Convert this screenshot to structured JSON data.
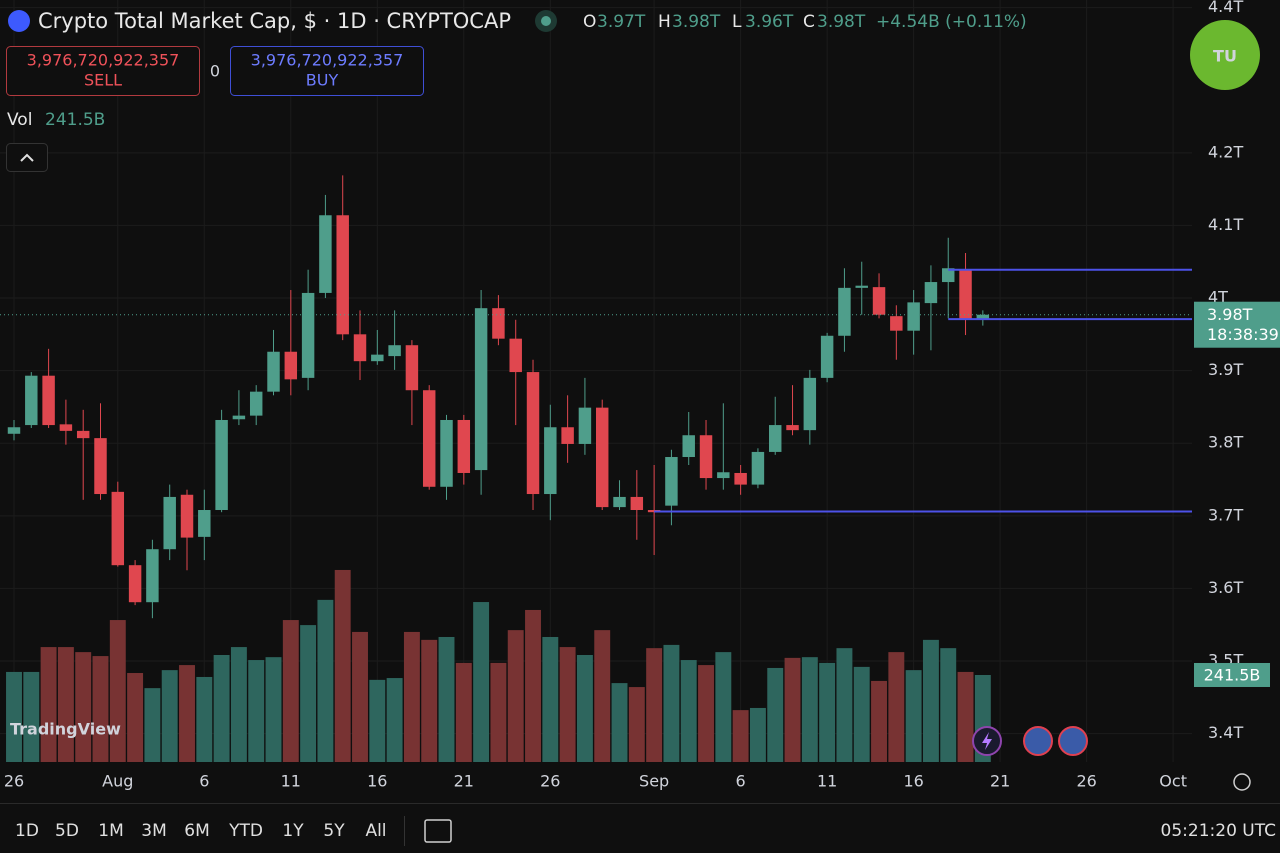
{
  "header": {
    "symbol": "Crypto Total Market Cap, $ · 1D · CRYPTOCAP",
    "ohlc": [
      {
        "key": "O",
        "value": "3.97T"
      },
      {
        "key": "H",
        "value": "3.98T"
      },
      {
        "key": "L",
        "value": "3.96T"
      },
      {
        "key": "C",
        "value": "3.98T"
      }
    ],
    "change": "+4.54B (+0.11%)"
  },
  "trade": {
    "sell_price": "3,976,720,922,357",
    "sell": "SELL",
    "spread": "0",
    "buy_price": "3,976,720,922,357",
    "buy": "BUY"
  },
  "volume_legend": {
    "label": "Vol",
    "value": "241.5B"
  },
  "brand": "TU",
  "watermark": "TradingView",
  "footer": {
    "ranges": [
      "1D",
      "5D",
      "1M",
      "3M",
      "6M",
      "YTD",
      "1Y",
      "5Y",
      "All"
    ],
    "time": "05:21:20 UTC"
  },
  "chart_data": {
    "type": "candlestick",
    "open": [
      3.813,
      3.825,
      3.893,
      3.826,
      3.817,
      3.807,
      3.733,
      3.632,
      3.581,
      3.654,
      3.729,
      3.671,
      3.708,
      3.833,
      3.838,
      3.871,
      3.926,
      3.89,
      4.007,
      4.114,
      3.95,
      3.913,
      3.92,
      3.935,
      3.873,
      3.74,
      3.832,
      3.763,
      3.986,
      3.944,
      3.898,
      3.73,
      3.822,
      3.799,
      3.849,
      3.712,
      3.726,
      3.708,
      3.714,
      3.781,
      3.811,
      3.752,
      3.759,
      3.743,
      3.788,
      3.825,
      3.818,
      3.89,
      3.948,
      4.014,
      4.015,
      3.975,
      3.955,
      3.993,
      4.022,
      4.039,
      3.97
    ],
    "high": [
      3.832,
      3.898,
      3.93,
      3.86,
      3.846,
      3.855,
      3.747,
      3.639,
      3.667,
      3.743,
      3.736,
      3.736,
      3.846,
      3.873,
      3.88,
      3.956,
      4.011,
      4.039,
      4.142,
      4.169,
      3.983,
      3.956,
      3.983,
      3.942,
      3.88,
      3.839,
      3.839,
      4.011,
      4.004,
      3.97,
      3.915,
      3.853,
      3.866,
      3.89,
      3.86,
      3.749,
      3.763,
      3.77,
      3.791,
      3.843,
      3.832,
      3.855,
      3.77,
      3.793,
      3.864,
      3.88,
      3.901,
      3.952,
      4.041,
      4.05,
      4.034,
      3.99,
      4.011,
      4.045,
      4.083,
      4.062,
      3.983
    ],
    "low": [
      3.804,
      3.821,
      3.821,
      3.798,
      3.722,
      3.722,
      3.63,
      3.577,
      3.559,
      3.639,
      3.625,
      3.639,
      3.705,
      3.825,
      3.825,
      3.866,
      3.866,
      3.873,
      4.0,
      3.942,
      3.887,
      3.908,
      3.901,
      3.825,
      3.736,
      3.722,
      3.743,
      3.729,
      3.935,
      3.825,
      3.708,
      3.694,
      3.773,
      3.784,
      3.708,
      3.708,
      3.667,
      3.646,
      3.687,
      3.77,
      3.736,
      3.736,
      3.729,
      3.738,
      3.784,
      3.811,
      3.798,
      3.884,
      3.926,
      3.977,
      3.972,
      3.915,
      3.922,
      3.928,
      3.972,
      3.949,
      3.962
    ],
    "close": [
      3.822,
      3.893,
      3.825,
      3.817,
      3.807,
      3.73,
      3.632,
      3.581,
      3.654,
      3.726,
      3.67,
      3.708,
      3.832,
      3.838,
      3.871,
      3.926,
      3.888,
      4.007,
      4.114,
      3.95,
      3.913,
      3.922,
      3.935,
      3.873,
      3.74,
      3.832,
      3.759,
      3.986,
      3.944,
      3.898,
      3.73,
      3.822,
      3.799,
      3.849,
      3.712,
      3.726,
      3.708,
      3.705,
      3.781,
      3.811,
      3.752,
      3.76,
      3.743,
      3.788,
      3.825,
      3.818,
      3.89,
      3.948,
      4.014,
      4.017,
      3.977,
      3.955,
      3.994,
      4.022,
      4.041,
      3.97,
      3.977
    ],
    "volume": [
      250,
      250,
      319,
      319,
      305,
      294,
      394,
      247,
      205,
      255,
      269,
      236,
      297,
      319,
      283,
      291,
      394,
      380,
      450,
      533,
      361,
      228,
      233,
      361,
      339,
      347,
      275,
      444,
      275,
      366,
      422,
      347,
      319,
      297,
      366,
      219,
      208,
      316,
      325,
      283,
      269,
      305,
      144,
      150,
      261,
      289,
      291,
      275,
      316,
      264,
      225,
      305,
      255,
      339,
      316,
      250,
      241.5
    ],
    "volume_lim": [
      0,
      2115
    ],
    "volume_label": "241.5B",
    "price_label": "3.98T",
    "countdown": "18:38:39",
    "levels": [
      {
        "start": 54,
        "value": 4.039
      },
      {
        "start": 54,
        "value": 3.971
      },
      {
        "start": 37,
        "value": 3.706
      }
    ],
    "ylim": [
      3.3609,
      4.4105
    ],
    "yticks": [
      {
        "value": 3.4,
        "label": "3.4T"
      },
      {
        "value": 3.5,
        "label": "3.5T"
      },
      {
        "value": 3.6,
        "label": "3.6T"
      },
      {
        "value": 3.7,
        "label": "3.7T"
      },
      {
        "value": 3.8,
        "label": "3.8T"
      },
      {
        "value": 3.9,
        "label": "3.9T"
      },
      {
        "value": 4.0,
        "label": "4T"
      },
      {
        "value": 4.1,
        "label": "4.1T"
      },
      {
        "value": 4.2,
        "label": "4.2T"
      },
      {
        "value": 4.4,
        "label": "4.4T"
      }
    ],
    "xlim": [
      -0.809,
      68.09
    ],
    "xticks": [
      {
        "value": 0,
        "label": "26"
      },
      {
        "value": 6,
        "label": "Aug"
      },
      {
        "value": 11,
        "label": "6"
      },
      {
        "value": 16,
        "label": "11"
      },
      {
        "value": 21,
        "label": "16"
      },
      {
        "value": 26,
        "label": "21"
      },
      {
        "value": 31,
        "label": "26"
      },
      {
        "value": 37,
        "label": "Sep"
      },
      {
        "value": 42,
        "label": "6"
      },
      {
        "value": 47,
        "label": "11"
      },
      {
        "value": 52,
        "label": "16"
      },
      {
        "value": 57,
        "label": "21"
      },
      {
        "value": 62,
        "label": "26"
      },
      {
        "value": 67,
        "label": "Oct"
      }
    ],
    "grid": true,
    "up_color": "#4f9e8b",
    "down_color": "#e0474f",
    "volume_up_color": "#2e665e",
    "volume_down_color": "#783333",
    "level_color": "#4d52e8"
  }
}
